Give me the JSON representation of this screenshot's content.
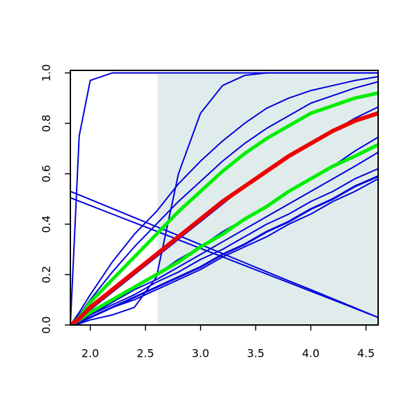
{
  "chart_data": {
    "type": "line",
    "x": [
      1.82,
      1.9,
      2.0,
      2.2,
      2.4,
      2.6,
      2.8,
      3.0,
      3.2,
      3.4,
      3.6,
      3.8,
      4.0,
      4.2,
      4.4,
      4.61
    ],
    "xlim": [
      1.82,
      4.61
    ],
    "ylim": [
      0,
      1.01
    ],
    "xticks": [
      {
        "value": 2.0,
        "label": "2.0"
      },
      {
        "value": 2.5,
        "label": "2.5"
      },
      {
        "value": 3.0,
        "label": "3.0"
      },
      {
        "value": 3.5,
        "label": "3.5"
      },
      {
        "value": 4.0,
        "label": "4.0"
      },
      {
        "value": 4.5,
        "label": "4.5"
      }
    ],
    "yticks": [
      {
        "value": 0,
        "label": "0.0"
      },
      {
        "value": 0.2,
        "label": "0.2"
      },
      {
        "value": 0.4,
        "label": "0.4"
      },
      {
        "value": 0.6,
        "label": "0.6"
      },
      {
        "value": 0.8,
        "label": "0.8"
      },
      {
        "value": 1.0,
        "label": "1.0"
      }
    ],
    "shaded_region": {
      "x": [
        2.61,
        4.61
      ],
      "color": "#dfeceb"
    },
    "series": [
      {
        "color": "#0000dd",
        "width": 2,
        "values": [
          0,
          0.75,
          0.97,
          1,
          1,
          1,
          1,
          1,
          1,
          1,
          1,
          1,
          1,
          1,
          1,
          1
        ]
      },
      {
        "color": "#0000dd",
        "width": 2,
        "values": [
          0,
          0.005,
          0.02,
          0.04,
          0.07,
          0.19,
          0.6,
          0.84,
          0.95,
          0.99,
          1,
          1,
          1,
          1,
          1,
          1
        ]
      },
      {
        "color": "#0000dd",
        "width": 2,
        "values": [
          0,
          0.05,
          0.12,
          0.25,
          0.36,
          0.45,
          0.56,
          0.65,
          0.73,
          0.8,
          0.86,
          0.9,
          0.93,
          0.95,
          0.97,
          0.985
        ]
      },
      {
        "color": "#0000dd",
        "width": 2,
        "values": [
          0,
          0.04,
          0.1,
          0.21,
          0.31,
          0.4,
          0.49,
          0.57,
          0.65,
          0.72,
          0.78,
          0.83,
          0.88,
          0.91,
          0.94,
          0.965
        ]
      },
      {
        "color": "#0000dd",
        "width": 2,
        "values": [
          0,
          0.02,
          0.06,
          0.13,
          0.2,
          0.27,
          0.34,
          0.41,
          0.48,
          0.55,
          0.61,
          0.67,
          0.72,
          0.77,
          0.82,
          0.865
        ]
      },
      {
        "color": "#0000dd",
        "width": 2,
        "values": [
          0,
          0.02,
          0.05,
          0.1,
          0.15,
          0.2,
          0.26,
          0.31,
          0.37,
          0.42,
          0.47,
          0.53,
          0.58,
          0.63,
          0.69,
          0.745
        ]
      },
      {
        "color": "#0000dd",
        "width": 2,
        "values": [
          0,
          0.015,
          0.04,
          0.09,
          0.14,
          0.18,
          0.23,
          0.28,
          0.33,
          0.38,
          0.43,
          0.48,
          0.53,
          0.58,
          0.63,
          0.685
        ]
      },
      {
        "color": "#0000dd",
        "width": 2,
        "values": [
          0,
          0.01,
          0.04,
          0.08,
          0.12,
          0.17,
          0.21,
          0.26,
          0.3,
          0.35,
          0.4,
          0.44,
          0.49,
          0.53,
          0.58,
          0.62
        ]
      },
      {
        "color": "#0000dd",
        "width": 3,
        "values": [
          0,
          0.01,
          0.03,
          0.07,
          0.11,
          0.15,
          0.19,
          0.23,
          0.28,
          0.32,
          0.37,
          0.41,
          0.46,
          0.5,
          0.55,
          0.59
        ]
      },
      {
        "color": "#0000dd",
        "width": 2,
        "values": [
          0,
          0.01,
          0.03,
          0.07,
          0.1,
          0.14,
          0.18,
          0.22,
          0.27,
          0.31,
          0.35,
          0.4,
          0.44,
          0.49,
          0.53,
          0.58
        ]
      },
      {
        "color": "#0000dd",
        "width": 2,
        "values": [
          0.53,
          0.516,
          0.498,
          0.462,
          0.426,
          0.39,
          0.355,
          0.319,
          0.283,
          0.247,
          0.211,
          0.175,
          0.14,
          0.104,
          0.068,
          0.03
        ]
      },
      {
        "color": "#0000dd",
        "width": 2,
        "values": [
          0.505,
          0.491,
          0.474,
          0.44,
          0.406,
          0.372,
          0.338,
          0.304,
          0.27,
          0.236,
          0.202,
          0.168,
          0.134,
          0.1,
          0.066,
          0.03
        ]
      },
      {
        "color": "#00ee00",
        "width": 5,
        "values": [
          0,
          0.03,
          0.09,
          0.18,
          0.27,
          0.36,
          0.45,
          0.53,
          0.61,
          0.68,
          0.74,
          0.79,
          0.84,
          0.87,
          0.9,
          0.92
        ]
      },
      {
        "color": "#00ee00",
        "width": 5,
        "values": [
          0,
          0.02,
          0.05,
          0.1,
          0.15,
          0.2,
          0.25,
          0.31,
          0.36,
          0.42,
          0.47,
          0.53,
          0.58,
          0.63,
          0.67,
          0.715
        ]
      },
      {
        "color": "#ee0000",
        "width": 6,
        "values": [
          0,
          0.025,
          0.07,
          0.14,
          0.21,
          0.28,
          0.35,
          0.42,
          0.49,
          0.55,
          0.61,
          0.67,
          0.72,
          0.77,
          0.81,
          0.84
        ]
      }
    ]
  }
}
